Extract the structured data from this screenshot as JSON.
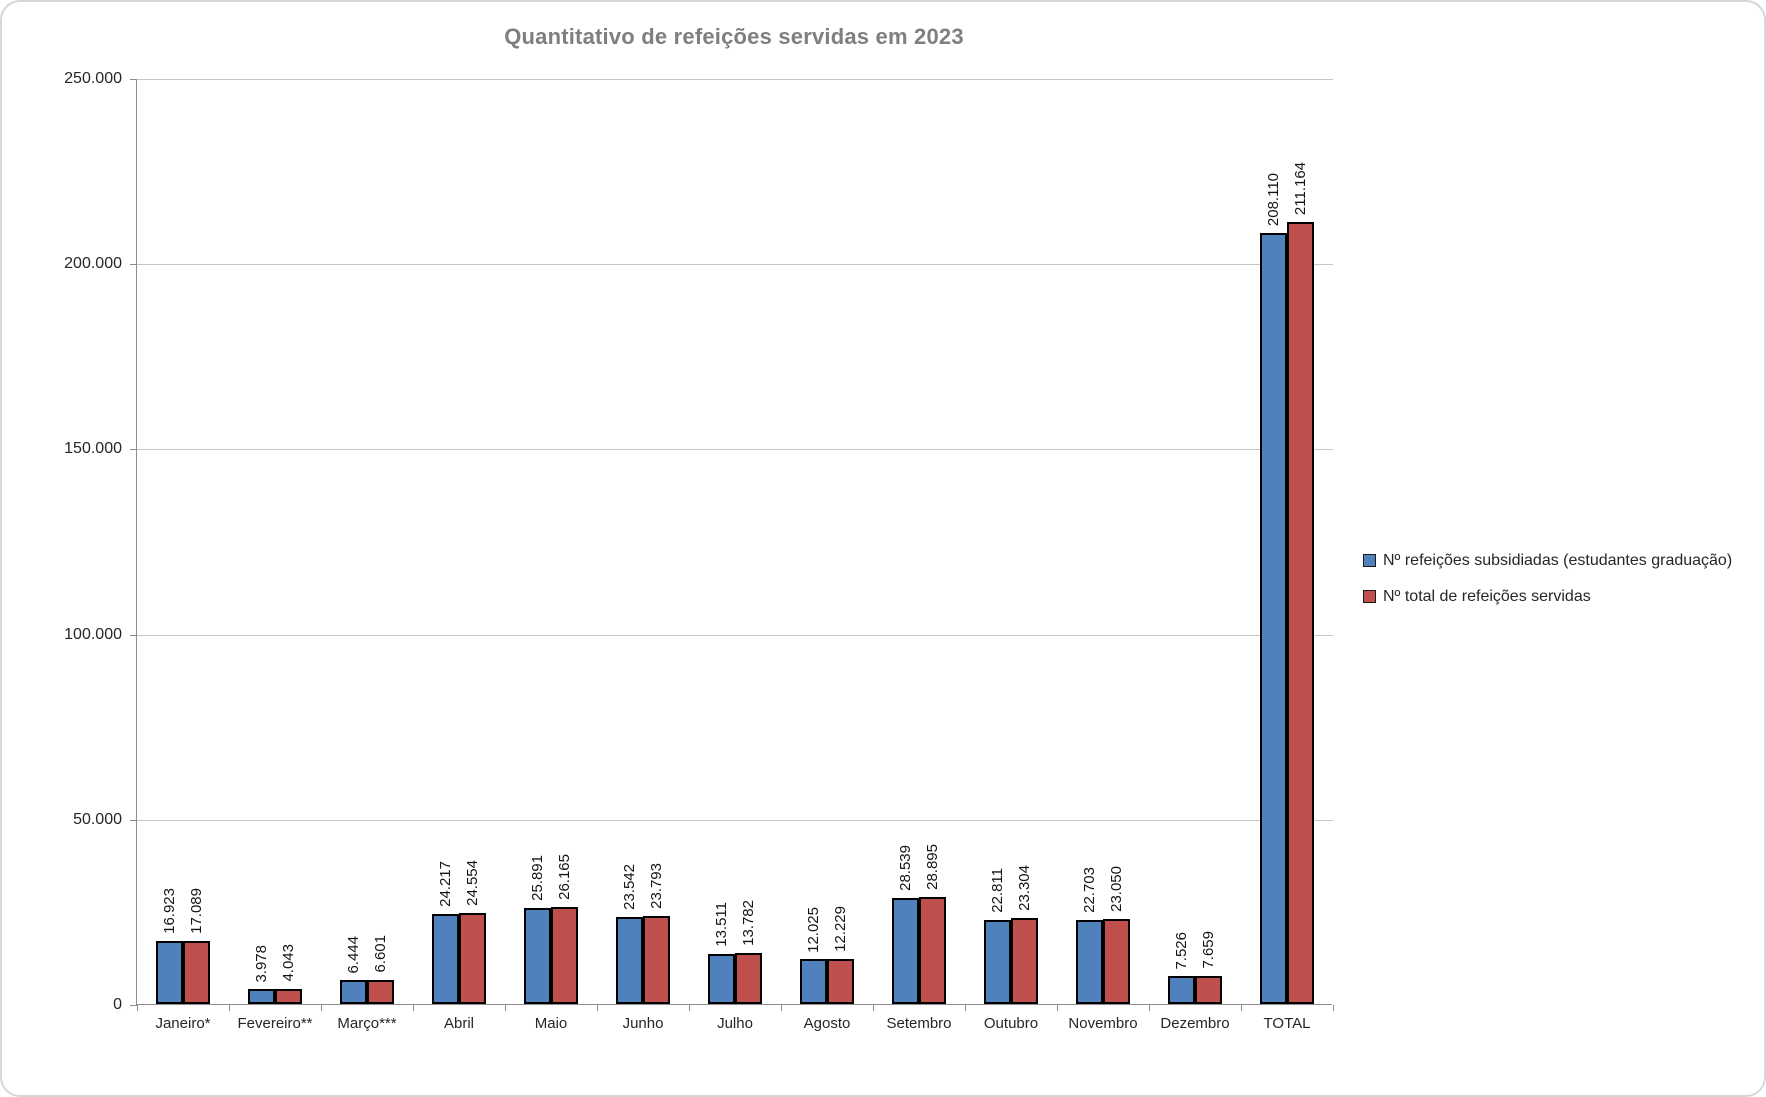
{
  "chart_data": {
    "type": "bar",
    "title": "Quantitativo de refeições servidas em 2023",
    "categories": [
      "Janeiro*",
      "Fevereiro**",
      "Março***",
      "Abril",
      "Maio",
      "Junho",
      "Julho",
      "Agosto",
      "Setembro",
      "Outubro",
      "Novembro",
      "Dezembro",
      "TOTAL"
    ],
    "series": [
      {
        "name": "Nº refeições subsidiadas (estudantes graduação)",
        "color": "#4f81bd",
        "values": [
          16923,
          3978,
          6444,
          24217,
          25891,
          23542,
          13511,
          12025,
          28539,
          22811,
          22703,
          7526,
          208110
        ],
        "labels": [
          "16.923",
          "3.978",
          "6.444",
          "24.217",
          "25.891",
          "23.542",
          "13.511",
          "12.025",
          "28.539",
          "22.811",
          "22.703",
          "7.526",
          "208.110"
        ]
      },
      {
        "name": "Nº total de refeições servidas",
        "color": "#c0504d",
        "values": [
          17089,
          4043,
          6601,
          24554,
          26165,
          23793,
          13782,
          12229,
          28895,
          23304,
          23050,
          7659,
          211164
        ],
        "labels": [
          "17.089",
          "4.043",
          "6.601",
          "24.554",
          "26.165",
          "23.793",
          "13.782",
          "12.229",
          "28.895",
          "23.304",
          "23.050",
          "7.659",
          "211.164"
        ]
      }
    ],
    "y_axis": {
      "min": 0,
      "max": 250000,
      "step": 50000,
      "tick_labels": [
        "0",
        "50.000",
        "100.000",
        "150.000",
        "200.000",
        "250.000"
      ]
    },
    "grid": true,
    "legend_position": "right",
    "bar_border_color": "#000000"
  }
}
